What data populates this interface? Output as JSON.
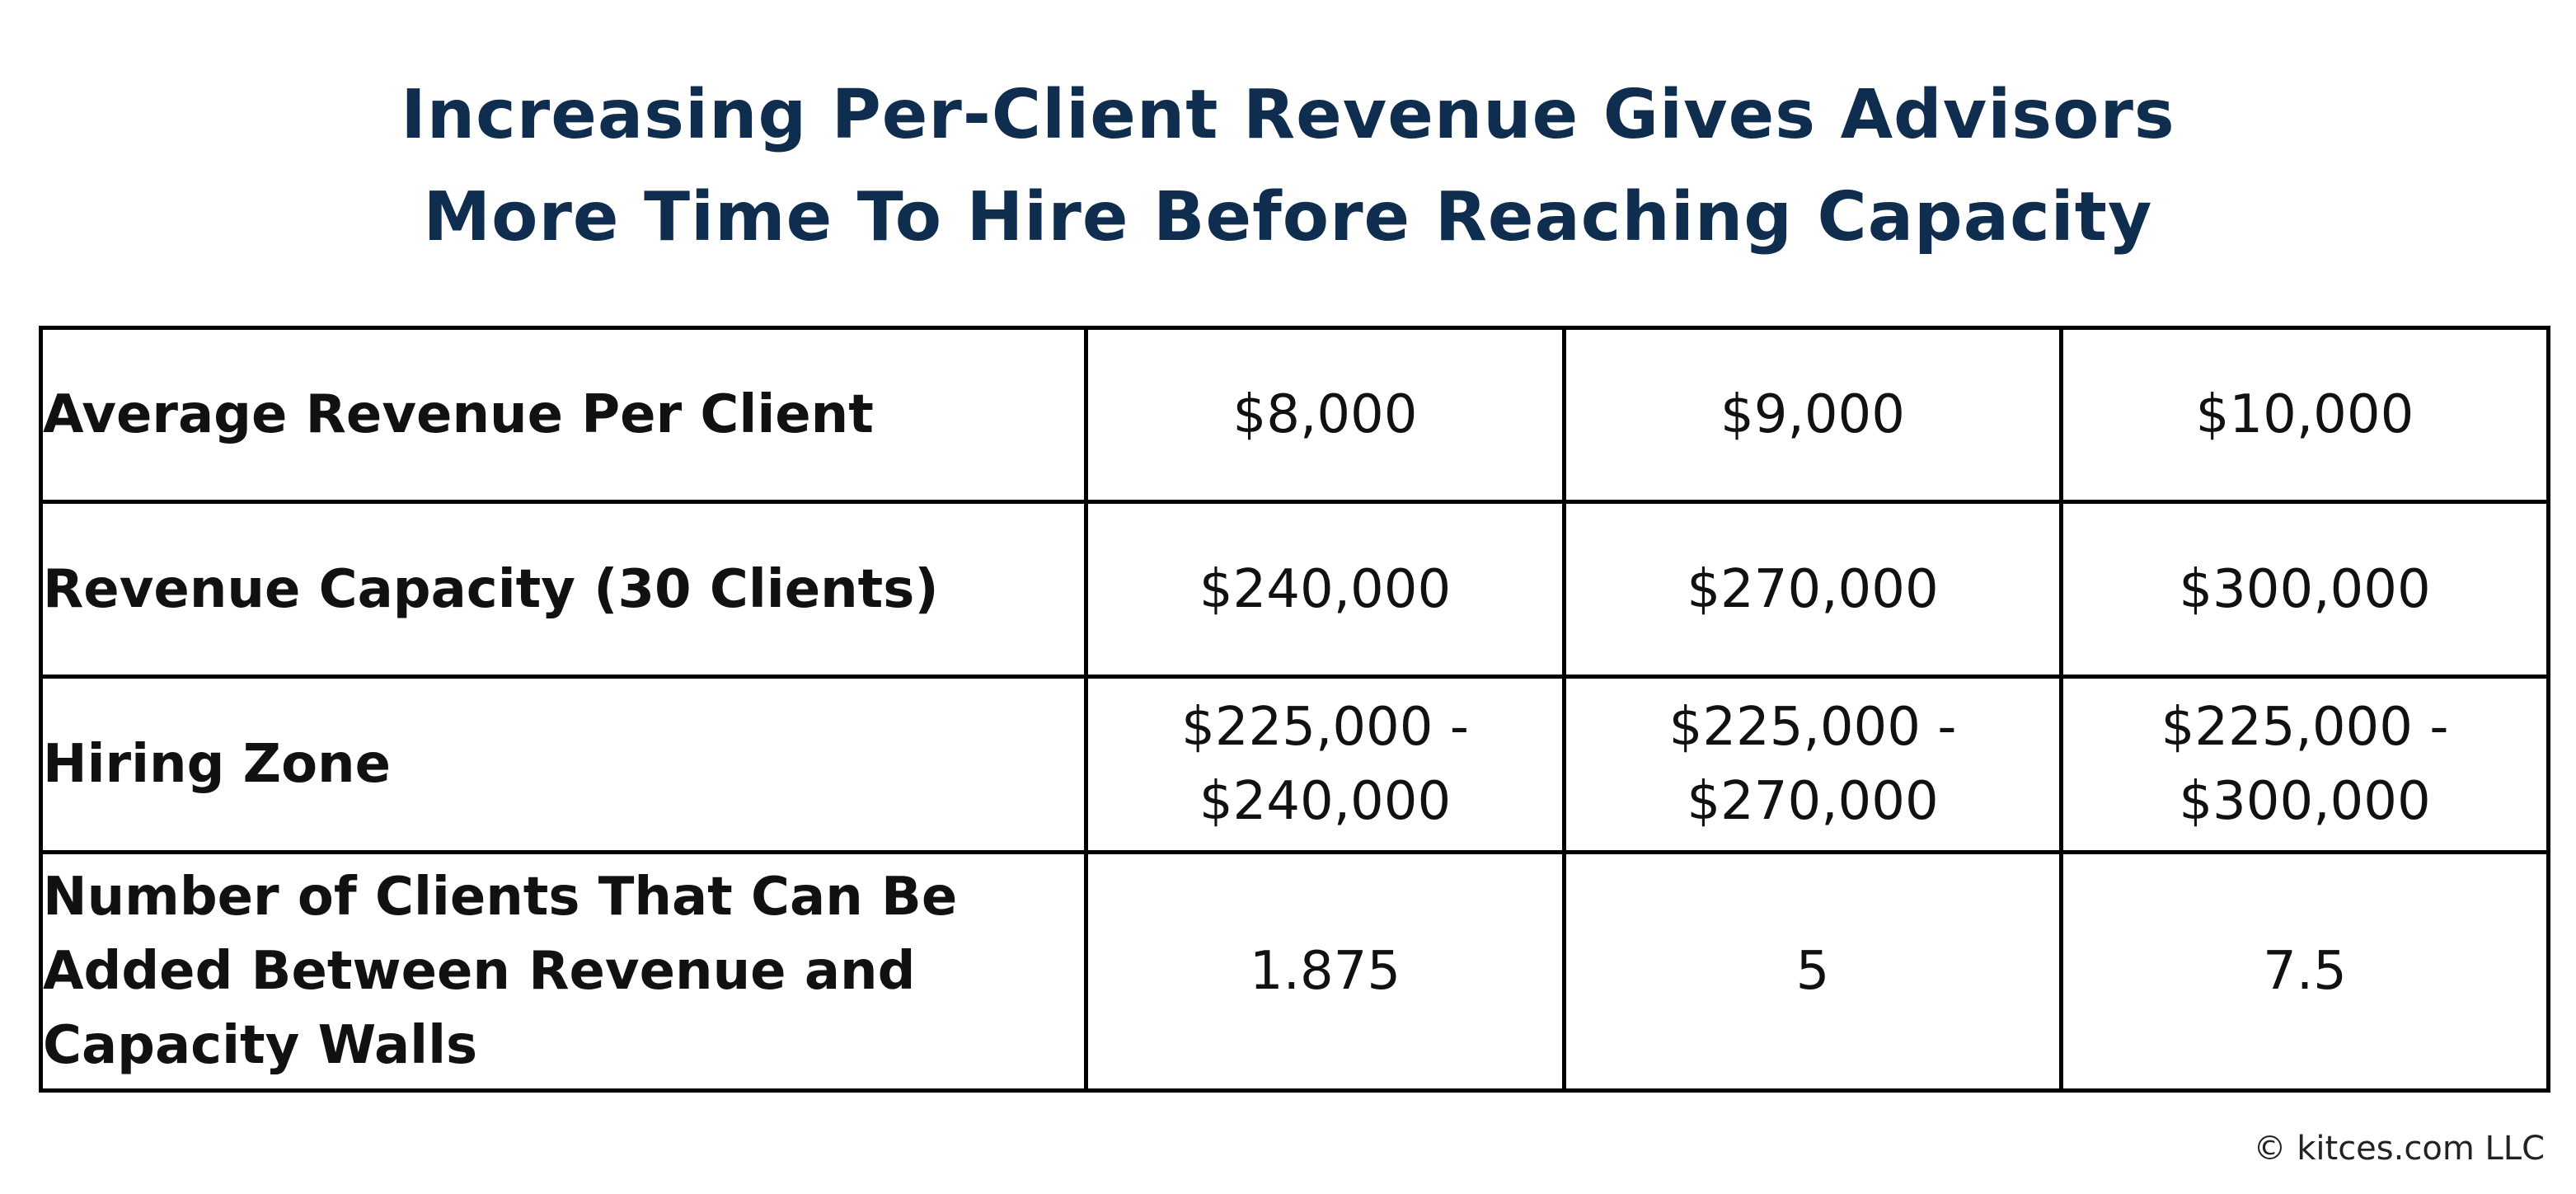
{
  "title": {
    "line1": "Increasing Per-Client Revenue Gives Advisors",
    "line2": "More Time To Hire Before Reaching Capacity"
  },
  "table": {
    "rows": [
      {
        "label": "Average Revenue Per Client",
        "values": [
          "$8,000",
          "$9,000",
          "$10,000"
        ]
      },
      {
        "label": "Revenue Capacity (30 Clients)",
        "values": [
          "$240,000",
          "$270,000",
          "$300,000"
        ]
      },
      {
        "label": "Hiring Zone",
        "values": [
          [
            "$225,000 -",
            "$240,000"
          ],
          [
            "$225,000 -",
            "$270,000"
          ],
          [
            "$225,000 -",
            "$300,000"
          ]
        ]
      },
      {
        "label_lines": [
          "Number of Clients That Can Be",
          "Added Between Revenue and",
          "Capacity Walls"
        ],
        "values": [
          "1.875",
          "5",
          "7.5"
        ]
      }
    ]
  },
  "footer": {
    "copyright": "© kitces.com LLC"
  }
}
